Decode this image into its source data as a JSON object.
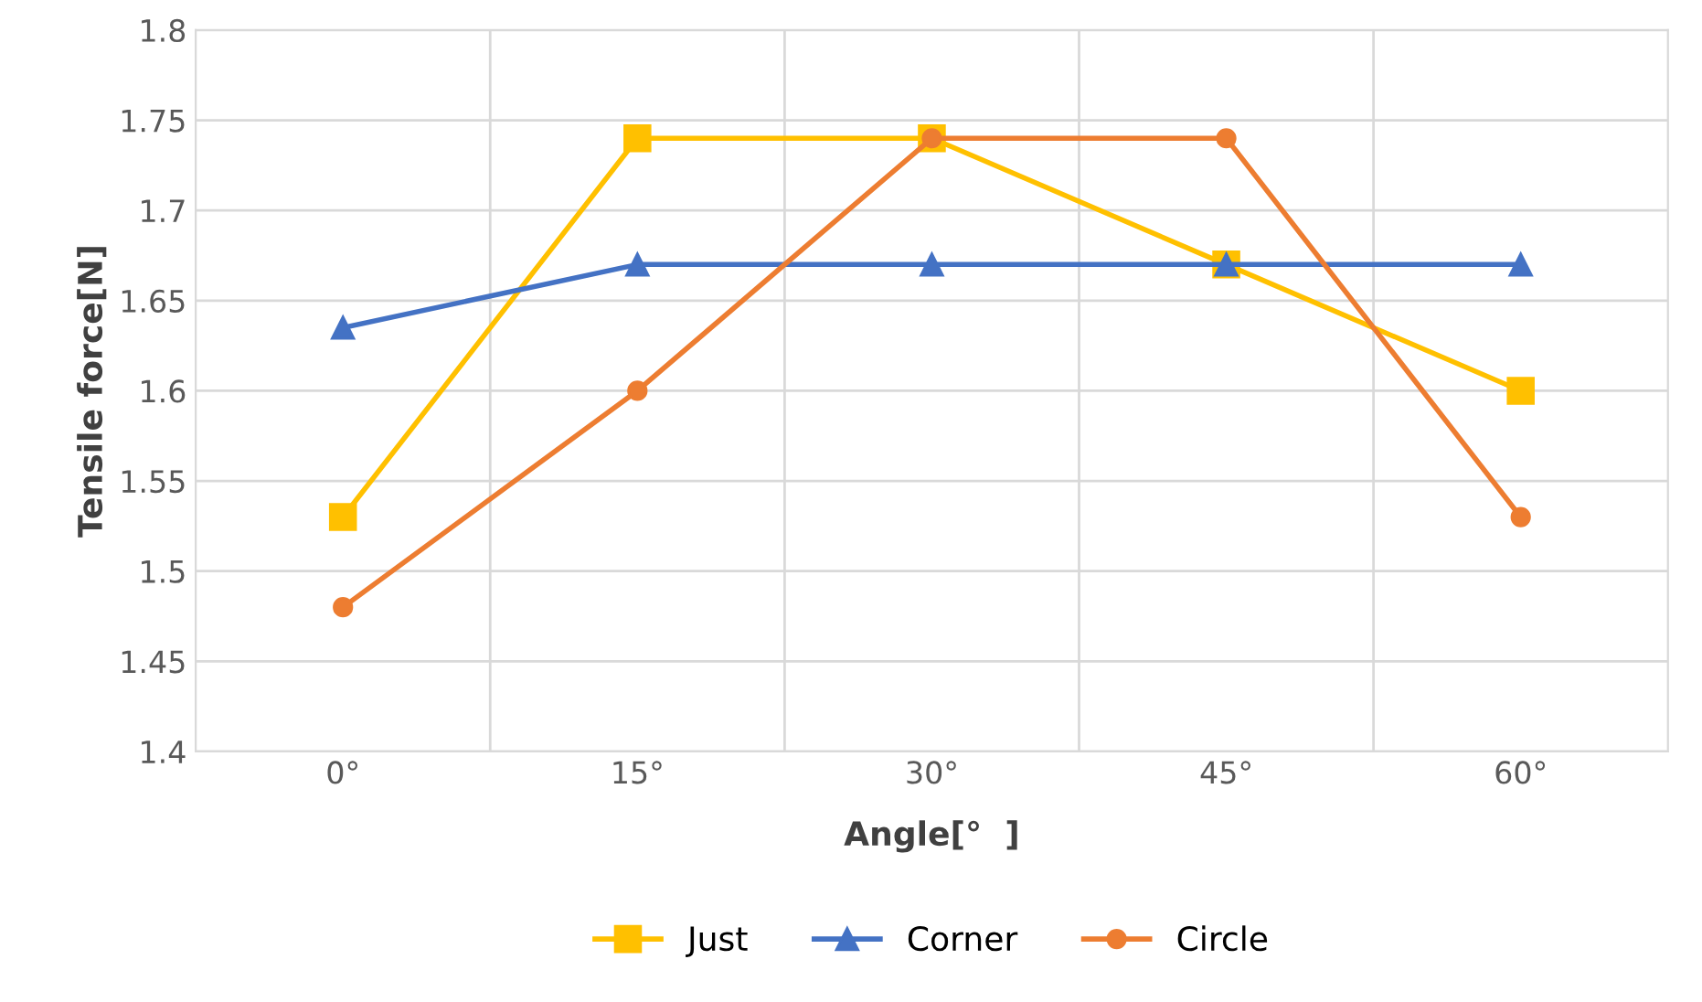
{
  "chart_data": {
    "type": "line",
    "xlabel": "Angle[°  ]",
    "ylabel": "Tensile force[N]",
    "categories": [
      "0°",
      "15°",
      "30°",
      "45°",
      "60°"
    ],
    "series": [
      {
        "name": "Just",
        "color": "#ffc000",
        "marker": "square",
        "values": [
          1.53,
          1.74,
          1.74,
          1.67,
          1.6
        ]
      },
      {
        "name": "Corner",
        "color": "#4472c4",
        "marker": "triangle",
        "values": [
          1.635,
          1.67,
          1.67,
          1.67,
          1.67
        ]
      },
      {
        "name": "Circle",
        "color": "#ed7d31",
        "marker": "circle",
        "values": [
          1.48,
          1.6,
          1.74,
          1.74,
          1.53
        ]
      }
    ],
    "ylim": [
      1.4,
      1.8
    ],
    "yticks": [
      1.4,
      1.45,
      1.5,
      1.55,
      1.6,
      1.65,
      1.7,
      1.75,
      1.8
    ],
    "grid": true,
    "legend": "bottom",
    "line_style": "solid"
  }
}
